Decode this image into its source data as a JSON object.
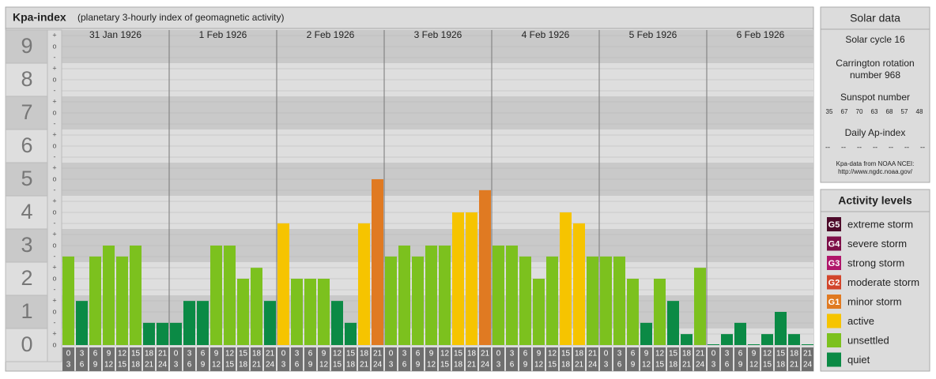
{
  "chart_data": {
    "type": "bar",
    "title": "Kpa-index",
    "subtitle": "(planetary 3-hourly index of geomagnetic activity)",
    "ylim": [
      -0.5,
      9.5
    ],
    "yticks": [
      0,
      1,
      2,
      3,
      4,
      5,
      6,
      7,
      8,
      9
    ],
    "minor_labels": {
      "plus": "+",
      "zero": "o",
      "minus": "-"
    },
    "grid": true,
    "hours": [
      [
        "0",
        "3"
      ],
      [
        "3",
        "6"
      ],
      [
        "6",
        "9"
      ],
      [
        "9",
        "12"
      ],
      [
        "12",
        "15"
      ],
      [
        "15",
        "18"
      ],
      [
        "18",
        "21"
      ],
      [
        "21",
        "24"
      ]
    ],
    "days": [
      {
        "label": "31 Jan 1926",
        "values": [
          2.67,
          1.33,
          2.67,
          3,
          2.67,
          3,
          0.67,
          0.67
        ],
        "colors": [
          "#7cc11e",
          "#0b8a45",
          "#7cc11e",
          "#7cc11e",
          "#7cc11e",
          "#7cc11e",
          "#0b8a45",
          "#0b8a45"
        ]
      },
      {
        "label": "1 Feb 1926",
        "values": [
          0.67,
          1.33,
          1.33,
          3,
          3,
          2,
          2.33,
          1.33
        ],
        "colors": [
          "#0b8a45",
          "#0b8a45",
          "#0b8a45",
          "#7cc11e",
          "#7cc11e",
          "#7cc11e",
          "#7cc11e",
          "#0b8a45"
        ]
      },
      {
        "label": "2 Feb 1926",
        "values": [
          3.67,
          2,
          2,
          2,
          1.33,
          0.67,
          3.67,
          5
        ],
        "colors": [
          "#f6c400",
          "#7cc11e",
          "#7cc11e",
          "#7cc11e",
          "#0b8a45",
          "#0b8a45",
          "#f6c400",
          "#e07a22"
        ]
      },
      {
        "label": "3 Feb 1926",
        "values": [
          2.67,
          3,
          2.67,
          3,
          3,
          4,
          4,
          4.67
        ],
        "colors": [
          "#7cc11e",
          "#7cc11e",
          "#7cc11e",
          "#7cc11e",
          "#7cc11e",
          "#f6c400",
          "#f6c400",
          "#e07a22"
        ]
      },
      {
        "label": "4 Feb 1926",
        "values": [
          3,
          3,
          2.67,
          2,
          2.67,
          4,
          3.67,
          2.67
        ],
        "colors": [
          "#7cc11e",
          "#7cc11e",
          "#7cc11e",
          "#7cc11e",
          "#7cc11e",
          "#f6c400",
          "#f6c400",
          "#7cc11e"
        ]
      },
      {
        "label": "5 Feb 1926",
        "values": [
          2.67,
          2.67,
          2,
          0.67,
          2,
          1.33,
          0.33,
          2.33
        ],
        "colors": [
          "#7cc11e",
          "#7cc11e",
          "#7cc11e",
          "#0b8a45",
          "#7cc11e",
          "#0b8a45",
          "#0b8a45",
          "#7cc11e"
        ]
      },
      {
        "label": "6 Feb 1926",
        "values": [
          0,
          0.33,
          0.67,
          0,
          0.33,
          1,
          0.33,
          0
        ],
        "colors": [
          "#0b8a45",
          "#0b8a45",
          "#0b8a45",
          "#0b8a45",
          "#0b8a45",
          "#0b8a45",
          "#0b8a45",
          "#0b8a45"
        ]
      }
    ]
  },
  "solar": {
    "title": "Solar data",
    "cycle": "Solar cycle 16",
    "carrington": [
      "Carrington rotation",
      "number 968"
    ],
    "sunspot_title": "Sunspot number",
    "sunspots": [
      35,
      67,
      70,
      63,
      68,
      57,
      48
    ],
    "ap_title": "Daily Ap-index",
    "ap": [
      "--",
      "--",
      "--",
      "--",
      "--",
      "--",
      "--"
    ],
    "source": [
      "Kpa-data from NOAA NCEI:",
      "http://www.ngdc.noaa.gov/"
    ]
  },
  "legend": {
    "title": "Activity levels",
    "items": [
      {
        "badge": "G5",
        "label": "extreme storm",
        "color": "#4d0a2a"
      },
      {
        "badge": "G4",
        "label": "severe storm",
        "color": "#7d0e48"
      },
      {
        "badge": "G3",
        "label": "strong storm",
        "color": "#b0166a"
      },
      {
        "badge": "G2",
        "label": "moderate storm",
        "color": "#d2452b"
      },
      {
        "badge": "G1",
        "label": "minor storm",
        "color": "#e07a22"
      },
      {
        "label": "active",
        "color": "#f6c400"
      },
      {
        "label": "unsettled",
        "color": "#7cc11e"
      },
      {
        "label": "quiet",
        "color": "#0b8a45"
      }
    ]
  }
}
